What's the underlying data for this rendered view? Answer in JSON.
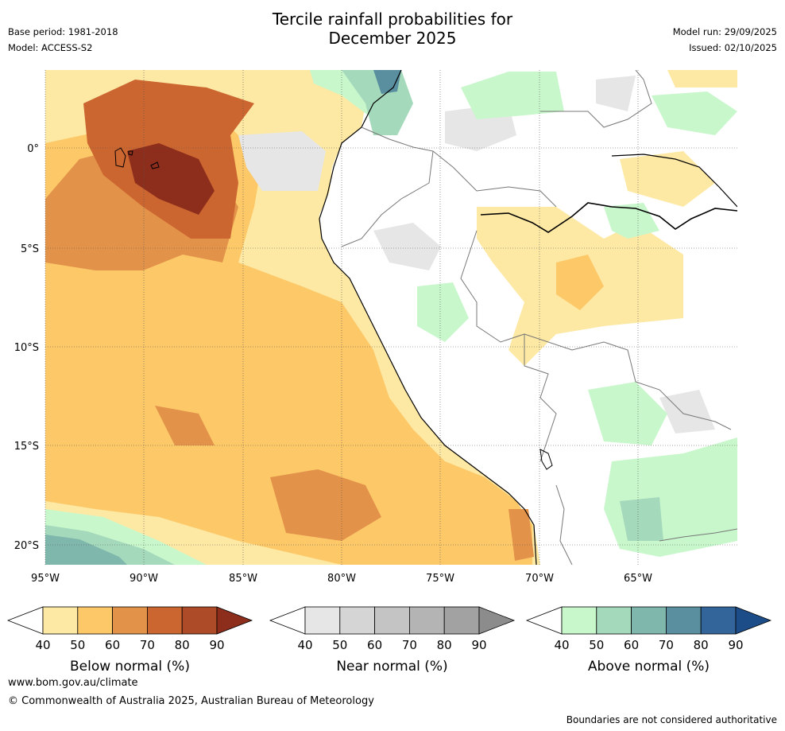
{
  "title_line1": "Tercile rainfall probabilities for",
  "title_line2": "December 2025",
  "meta": {
    "base_period": "Base period: 1981-2018",
    "model": "Model: ACCESS-S2",
    "model_run": "Model run: 29/09/2025",
    "issued": "Issued: 02/10/2025"
  },
  "lat_labels": [
    "0°",
    "5°S",
    "10°S",
    "15°S",
    "20°S"
  ],
  "lon_labels": [
    "95°W",
    "90°W",
    "85°W",
    "80°W",
    "75°W",
    "70°W",
    "65°W"
  ],
  "colorbars": [
    {
      "label": "Below normal (%)",
      "ticks": [
        "40",
        "50",
        "60",
        "70",
        "80",
        "90"
      ],
      "colors": [
        "#ffffff",
        "#fde9a4",
        "#fdc868",
        "#e3924a",
        "#cc6630",
        "#ad4a27",
        "#8d2d1c"
      ]
    },
    {
      "label": "Near normal (%)",
      "ticks": [
        "40",
        "50",
        "60",
        "70",
        "80",
        "90"
      ],
      "colors": [
        "#ffffff",
        "#e6e6e6",
        "#d5d5d5",
        "#c4c4c4",
        "#b4b4b4",
        "#a2a2a2",
        "#8c8c8c"
      ]
    },
    {
      "label": "Above normal (%)",
      "ticks": [
        "40",
        "50",
        "60",
        "70",
        "80",
        "90"
      ],
      "colors": [
        "#ffffff",
        "#c9f7cc",
        "#a5d9bb",
        "#7fb7ad",
        "#5a8fa0",
        "#33649a",
        "#1c4d88"
      ]
    }
  ],
  "footer": {
    "url": "www.bom.gov.au/climate",
    "copyright": "© Commonwealth of Australia 2025, Australian Bureau of Meteorology",
    "note": "Boundaries are not considered authoritative"
  }
}
